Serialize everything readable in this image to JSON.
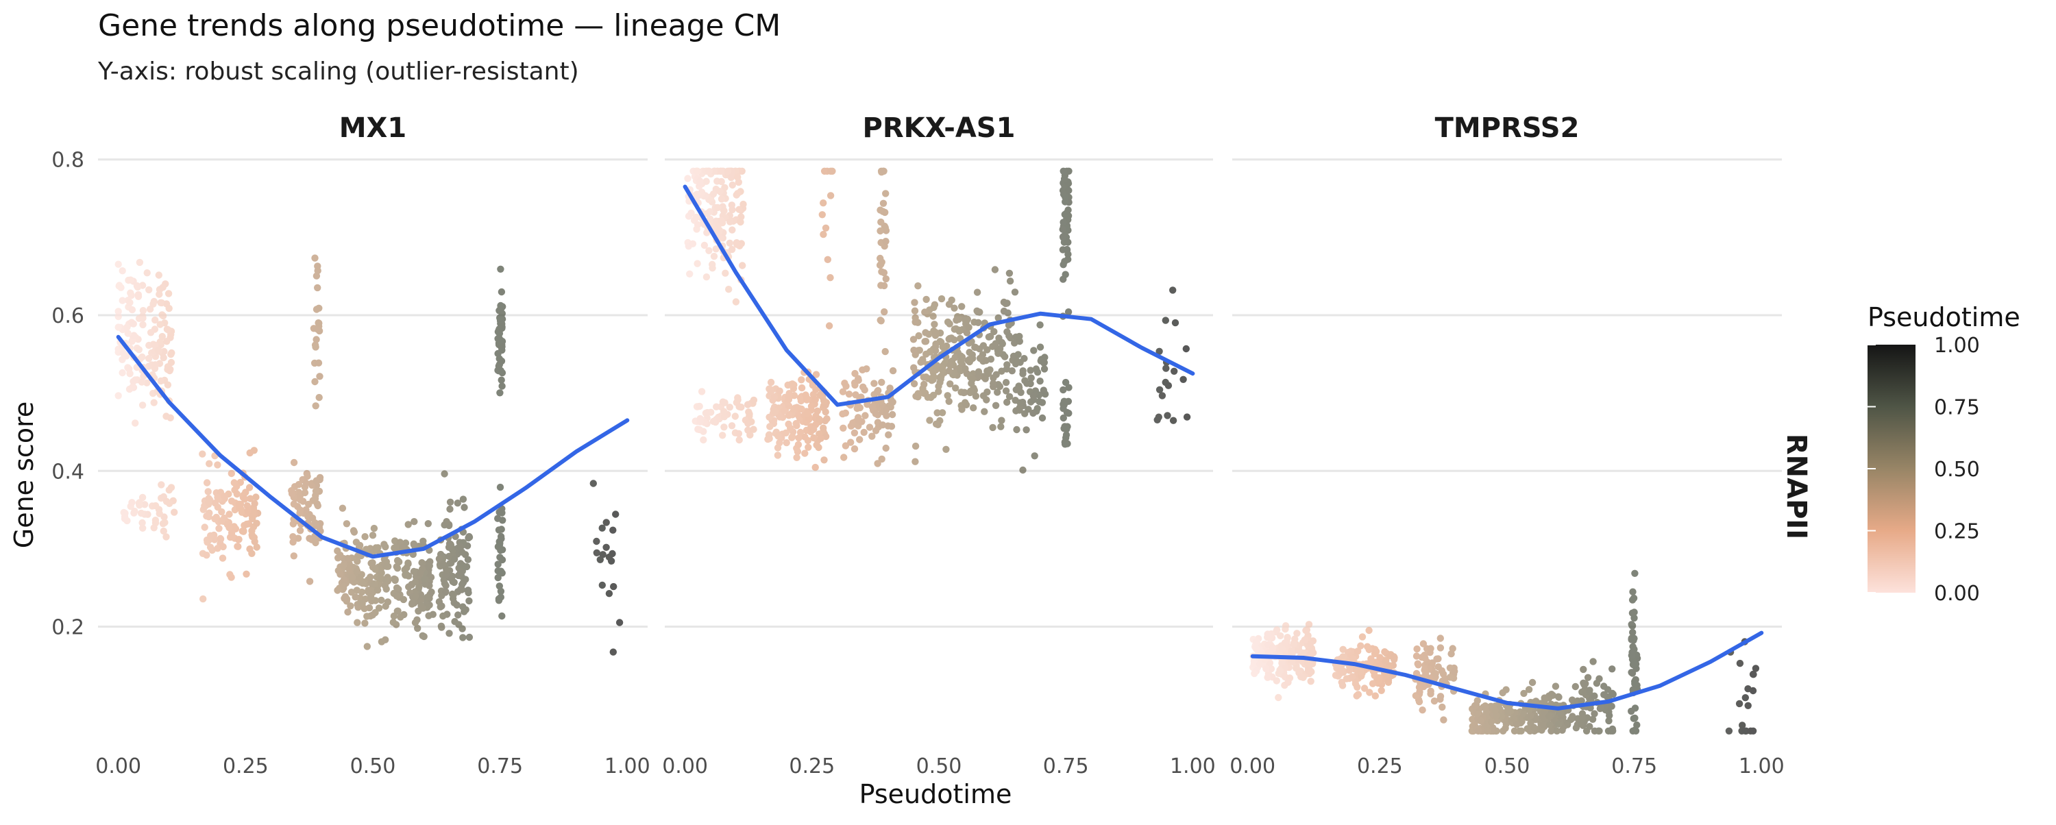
{
  "chart_data": {
    "type": "scatter",
    "title": "Gene trends along pseudotime — lineage CM",
    "subtitle": "Y-axis: robust scaling (outlier-resistant)",
    "xlabel": "Pseudotime",
    "ylabel": "Gene score",
    "strip_label_right": "RNAPII",
    "xlim": [
      -0.04,
      1.04
    ],
    "ylim": [
      0.05,
      0.82
    ],
    "x_ticks": [
      "0.00",
      "0.25",
      "0.50",
      "0.75",
      "1.00"
    ],
    "y_ticks": [
      "0.2",
      "0.4",
      "0.6",
      "0.8"
    ],
    "grid": true,
    "point_color_scale": {
      "stops": [
        {
          "value": 0.0,
          "color": "#fde2dc"
        },
        {
          "value": 0.25,
          "color": "#e7aa88"
        },
        {
          "value": 0.5,
          "color": "#988566"
        },
        {
          "value": 0.75,
          "color": "#4f5546"
        },
        {
          "value": 1.0,
          "color": "#151515"
        }
      ]
    },
    "smooth_color": "#3366e6",
    "legend": {
      "title": "Pseudotime",
      "labels": [
        "1.00",
        "0.75",
        "0.50",
        "0.25",
        "0.00"
      ],
      "placement": "right"
    },
    "panels": [
      {
        "name": "MX1",
        "point_clusters": [
          {
            "x": 0.05,
            "xspread": 0.055,
            "y": 0.57,
            "yspread": 0.045,
            "n": 150
          },
          {
            "x": 0.06,
            "xspread": 0.05,
            "y": 0.35,
            "yspread": 0.015,
            "n": 40
          },
          {
            "x": 0.22,
            "xspread": 0.055,
            "y": 0.34,
            "yspread": 0.03,
            "n": 130
          },
          {
            "x": 0.37,
            "xspread": 0.03,
            "y": 0.345,
            "yspread": 0.03,
            "n": 70
          },
          {
            "x": 0.39,
            "xspread": 0.006,
            "y": 0.58,
            "yspread": 0.04,
            "n": 22
          },
          {
            "x": 0.48,
            "xspread": 0.05,
            "y": 0.26,
            "yspread": 0.03,
            "n": 160
          },
          {
            "x": 0.58,
            "xspread": 0.04,
            "y": 0.26,
            "yspread": 0.03,
            "n": 120
          },
          {
            "x": 0.66,
            "xspread": 0.03,
            "y": 0.27,
            "yspread": 0.04,
            "n": 110
          },
          {
            "x": 0.75,
            "xspread": 0.005,
            "y": 0.57,
            "yspread": 0.035,
            "n": 45
          },
          {
            "x": 0.75,
            "xspread": 0.005,
            "y": 0.3,
            "yspread": 0.05,
            "n": 30
          },
          {
            "x": 0.96,
            "xspread": 0.03,
            "y": 0.31,
            "yspread": 0.05,
            "n": 18
          }
        ],
        "smooth": {
          "x": [
            0.0,
            0.1,
            0.2,
            0.3,
            0.4,
            0.5,
            0.6,
            0.7,
            0.8,
            0.9,
            1.0
          ],
          "y": [
            0.572,
            0.488,
            0.42,
            0.366,
            0.315,
            0.29,
            0.3,
            0.335,
            0.378,
            0.425,
            0.465
          ]
        }
      },
      {
        "name": "PRKX-AS1",
        "point_clusters": [
          {
            "x": 0.06,
            "xspread": 0.055,
            "y": 0.735,
            "yspread": 0.045,
            "n": 170
          },
          {
            "x": 0.08,
            "xspread": 0.06,
            "y": 0.47,
            "yspread": 0.015,
            "n": 60
          },
          {
            "x": 0.22,
            "xspread": 0.06,
            "y": 0.47,
            "yspread": 0.025,
            "n": 160
          },
          {
            "x": 0.36,
            "xspread": 0.05,
            "y": 0.475,
            "yspread": 0.025,
            "n": 90
          },
          {
            "x": 0.28,
            "xspread": 0.01,
            "y": 0.72,
            "yspread": 0.06,
            "n": 12
          },
          {
            "x": 0.39,
            "xspread": 0.006,
            "y": 0.7,
            "yspread": 0.07,
            "n": 30
          },
          {
            "x": 0.5,
            "xspread": 0.05,
            "y": 0.545,
            "yspread": 0.04,
            "n": 150
          },
          {
            "x": 0.6,
            "xspread": 0.05,
            "y": 0.55,
            "yspread": 0.04,
            "n": 120
          },
          {
            "x": 0.68,
            "xspread": 0.03,
            "y": 0.5,
            "yspread": 0.04,
            "n": 60
          },
          {
            "x": 0.75,
            "xspread": 0.006,
            "y": 0.72,
            "yspread": 0.05,
            "n": 55
          },
          {
            "x": 0.75,
            "xspread": 0.006,
            "y": 0.47,
            "yspread": 0.03,
            "n": 20
          },
          {
            "x": 0.96,
            "xspread": 0.03,
            "y": 0.52,
            "yspread": 0.045,
            "n": 18
          }
        ],
        "smooth": {
          "x": [
            0.0,
            0.1,
            0.2,
            0.3,
            0.4,
            0.5,
            0.6,
            0.7,
            0.8,
            0.9,
            1.0
          ],
          "y": [
            0.765,
            0.655,
            0.555,
            0.485,
            0.495,
            0.545,
            0.588,
            0.602,
            0.595,
            0.558,
            0.525
          ]
        }
      },
      {
        "name": "TMPRSS2",
        "point_clusters": [
          {
            "x": 0.06,
            "xspread": 0.06,
            "y": 0.16,
            "yspread": 0.017,
            "n": 200
          },
          {
            "x": 0.22,
            "xspread": 0.06,
            "y": 0.145,
            "yspread": 0.016,
            "n": 130
          },
          {
            "x": 0.36,
            "xspread": 0.04,
            "y": 0.14,
            "yspread": 0.018,
            "n": 80
          },
          {
            "x": 0.48,
            "xspread": 0.05,
            "y": 0.085,
            "yspread": 0.012,
            "n": 140
          },
          {
            "x": 0.58,
            "xspread": 0.05,
            "y": 0.09,
            "yspread": 0.014,
            "n": 120
          },
          {
            "x": 0.67,
            "xspread": 0.04,
            "y": 0.1,
            "yspread": 0.03,
            "n": 70
          },
          {
            "x": 0.75,
            "xspread": 0.006,
            "y": 0.15,
            "yspread": 0.045,
            "n": 50
          },
          {
            "x": 0.96,
            "xspread": 0.03,
            "y": 0.12,
            "yspread": 0.035,
            "n": 18
          }
        ],
        "smooth": {
          "x": [
            0.0,
            0.1,
            0.2,
            0.3,
            0.4,
            0.5,
            0.6,
            0.7,
            0.8,
            0.9,
            1.0
          ],
          "y": [
            0.162,
            0.16,
            0.152,
            0.138,
            0.12,
            0.102,
            0.095,
            0.104,
            0.124,
            0.155,
            0.192
          ]
        }
      }
    ]
  }
}
